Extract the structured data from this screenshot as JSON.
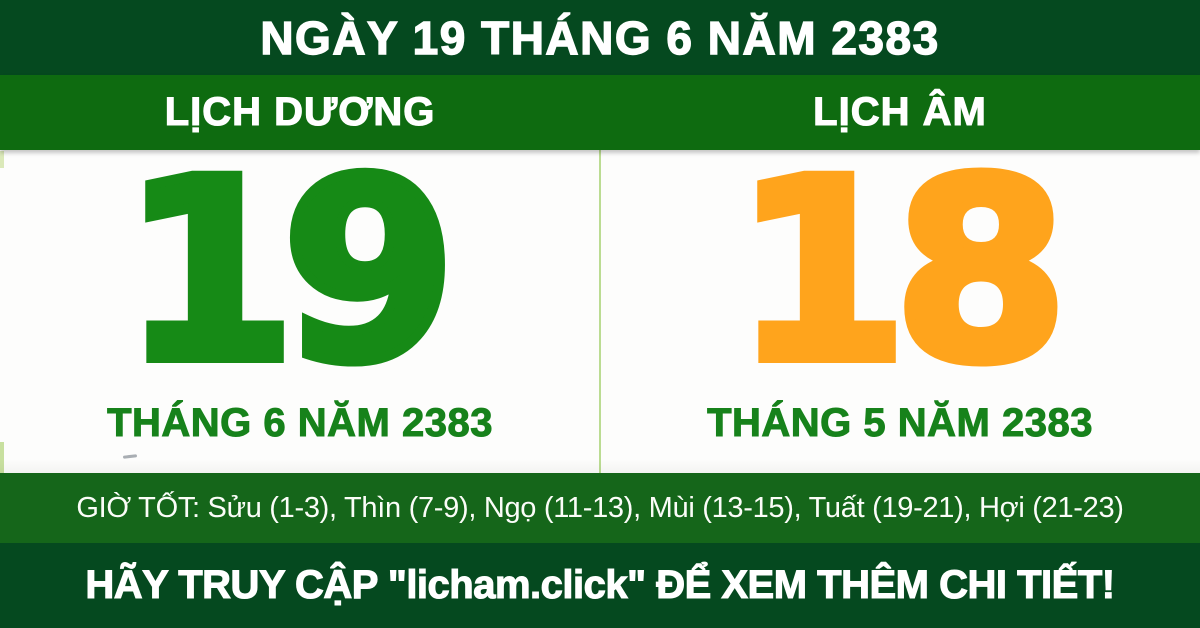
{
  "colors": {
    "dark_green": "#05491f",
    "band_green": "#0e6b10",
    "hours_green": "#15661a",
    "solar_day": "#168a16",
    "lunar_day": "#ffa41c",
    "month_label": "#17821b",
    "divider": "#bbdc92",
    "text_white": "#ffffff"
  },
  "header": {
    "title": "NGÀY 19 THÁNG 6 NĂM 2383"
  },
  "calendars": {
    "solar": {
      "label": "LỊCH DƯƠNG",
      "day": "19",
      "month_year": "THÁNG 6 NĂM 2383"
    },
    "lunar": {
      "label": "LỊCH ÂM",
      "day": "18",
      "month_year": "THÁNG 5 NĂM 2383"
    }
  },
  "good_hours": {
    "text": "GIỜ TỐT: Sửu (1-3), Thìn (7-9), Ngọ (11-13), Mùi (13-15), Tuất (19-21), Hợi (21-23)"
  },
  "footer": {
    "text": "HÃY TRUY CẬP \"licham.click\" ĐỂ XEM THÊM CHI TIẾT!"
  }
}
